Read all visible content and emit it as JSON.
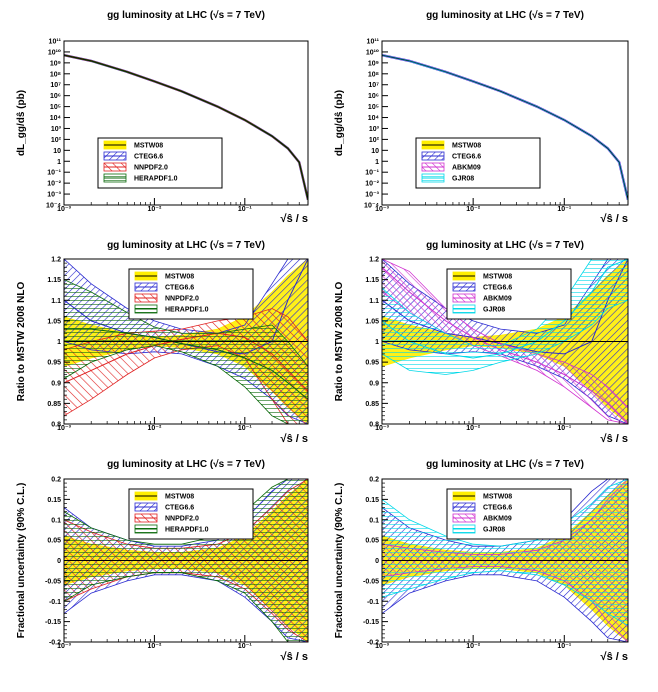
{
  "figure": {
    "colors": {
      "MSTW08": "#ffee00",
      "CTEG6.6": "#2a2ad0",
      "NNPDF2.0": "#e02020",
      "HERAPDF1.0": "#0b6a0b",
      "ABKM09": "#d030d0",
      "GJR08": "#00d8e8",
      "axis": "#000000"
    }
  },
  "chart_data": [
    {
      "id": "top-left",
      "type": "line",
      "title": "gg luminosity at LHC (√s = 7 TeV)",
      "ylabel": "dL_gg/dŝ (pb)",
      "xlabel": "√ŝ / s",
      "xscale": "log",
      "yscale": "log",
      "xlim": [
        0.001,
        0.5
      ],
      "ylim": [
        0.0001,
        100000000000
      ],
      "x_ticks": [
        "10⁻³",
        "10⁻²",
        "10⁻¹"
      ],
      "y_ticks": [
        "10⁻⁴",
        "10⁻³",
        "10⁻²",
        "10⁻¹",
        "1",
        "10",
        "10²",
        "10³",
        "10⁴",
        "10⁵",
        "10⁶",
        "10⁷",
        "10⁸",
        "10⁹",
        "10¹⁰",
        "10¹¹"
      ],
      "legend": [
        "MSTW08",
        "CTEG6.6",
        "NNPDF2.0",
        "HERAPDF1.0"
      ],
      "series": [
        {
          "name": "MSTW08",
          "x": [
            0.001,
            0.002,
            0.005,
            0.01,
            0.02,
            0.05,
            0.1,
            0.2,
            0.3,
            0.4,
            0.5
          ],
          "y": [
            5000000000,
            1500000000,
            150000000,
            20000000,
            2500000,
            100000,
            6000,
            200,
            15,
            0.8,
            0.0003
          ]
        }
      ]
    },
    {
      "id": "top-right",
      "type": "line",
      "title": "gg luminosity at LHC (√s = 7 TeV)",
      "ylabel": "dL_gg/dŝ (pb)",
      "xlabel": "√ŝ / s",
      "xscale": "log",
      "yscale": "log",
      "xlim": [
        0.001,
        0.5
      ],
      "ylim": [
        0.0001,
        100000000000
      ],
      "x_ticks": [
        "10⁻³",
        "10⁻²",
        "10⁻¹"
      ],
      "y_ticks": [
        "10⁻⁴",
        "10⁻³",
        "10⁻²",
        "10⁻¹",
        "1",
        "10",
        "10²",
        "10³",
        "10⁴",
        "10⁵",
        "10⁶",
        "10⁷",
        "10⁸",
        "10⁹",
        "10¹⁰",
        "10¹¹"
      ],
      "legend": [
        "MSTW08",
        "CTEG6.6",
        "ABKM09",
        "GJR08"
      ],
      "series": [
        {
          "name": "MSTW08",
          "x": [
            0.001,
            0.002,
            0.005,
            0.01,
            0.02,
            0.05,
            0.1,
            0.2,
            0.3,
            0.4,
            0.5
          ],
          "y": [
            5000000000,
            1500000000,
            150000000,
            20000000,
            2500000,
            100000,
            6000,
            200,
            15,
            0.8,
            0.0003
          ]
        }
      ]
    },
    {
      "id": "mid-left",
      "type": "area",
      "title": "gg luminosity at LHC (√s = 7 TeV)",
      "ylabel": "Ratio to MSTW 2008 NLO",
      "xlabel": "√ŝ / s",
      "xscale": "log",
      "xlim": [
        0.001,
        0.5
      ],
      "ylim": [
        0.8,
        1.2
      ],
      "x_ticks": [
        "10⁻³",
        "10⁻²",
        "10⁻¹"
      ],
      "y_ticks": [
        "0.8",
        "0.85",
        "0.9",
        "0.95",
        "1",
        "1.05",
        "1.1",
        "1.15",
        "1.2"
      ],
      "legend": [
        "MSTW08",
        "CTEG6.6",
        "NNPDF2.0",
        "HERAPDF1.0"
      ],
      "series": [
        {
          "name": "MSTW08",
          "x": [
            0.001,
            0.002,
            0.005,
            0.01,
            0.02,
            0.05,
            0.1,
            0.2,
            0.3,
            0.5
          ],
          "central": [
            1,
            1,
            1,
            1,
            1,
            1,
            1,
            1,
            1,
            1
          ],
          "lower": [
            0.94,
            0.96,
            0.98,
            0.99,
            0.985,
            0.97,
            0.94,
            0.88,
            0.84,
            0.8
          ],
          "upper": [
            1.06,
            1.04,
            1.02,
            1.01,
            1.015,
            1.03,
            1.06,
            1.12,
            1.16,
            1.2
          ]
        },
        {
          "name": "CTEG6.6",
          "x": [
            0.001,
            0.002,
            0.005,
            0.01,
            0.02,
            0.05,
            0.1,
            0.2,
            0.3,
            0.5
          ],
          "central": [
            1.1,
            1.05,
            1.02,
            1.01,
            0.995,
            0.975,
            0.97,
            1.0,
            1.1,
            1.2
          ],
          "lower": [
            1.0,
            0.98,
            0.97,
            0.975,
            0.97,
            0.94,
            0.91,
            0.86,
            0.82,
            0.8
          ],
          "upper": [
            1.2,
            1.14,
            1.08,
            1.05,
            1.03,
            1.02,
            1.04,
            1.14,
            1.2,
            1.2
          ]
        },
        {
          "name": "NNPDF2.0",
          "x": [
            0.001,
            0.002,
            0.005,
            0.01,
            0.02,
            0.05,
            0.1,
            0.2,
            0.3,
            0.5
          ],
          "central": [
            0.9,
            0.93,
            0.97,
            0.99,
            1.005,
            1.02,
            1.01,
            0.97,
            0.93,
            0.88
          ],
          "lower": [
            0.82,
            0.86,
            0.92,
            0.96,
            0.98,
            0.99,
            0.96,
            0.86,
            0.8,
            0.8
          ],
          "upper": [
            0.98,
            1.0,
            1.02,
            1.025,
            1.03,
            1.05,
            1.06,
            1.08,
            1.06,
            1.0
          ]
        },
        {
          "name": "HERAPDF1.0",
          "x": [
            0.001,
            0.002,
            0.005,
            0.01,
            0.02,
            0.05,
            0.1,
            0.2,
            0.3,
            0.5
          ],
          "central": [
            1.03,
            1.03,
            1.02,
            1.01,
            0.995,
            0.98,
            0.96,
            0.93,
            0.9,
            0.86
          ],
          "lower": [
            0.91,
            0.95,
            0.98,
            0.99,
            0.975,
            0.94,
            0.89,
            0.82,
            0.8,
            0.8
          ],
          "upper": [
            1.15,
            1.12,
            1.07,
            1.035,
            1.02,
            1.02,
            1.03,
            1.04,
            1.0,
            0.94
          ]
        }
      ]
    },
    {
      "id": "mid-right",
      "type": "area",
      "title": "gg luminosity at LHC (√s = 7 TeV)",
      "ylabel": "Ratio to MSTW 2008 NLO",
      "xlabel": "√ŝ / s",
      "xscale": "log",
      "xlim": [
        0.001,
        0.5
      ],
      "ylim": [
        0.8,
        1.2
      ],
      "x_ticks": [
        "10⁻³",
        "10⁻²",
        "10⁻¹"
      ],
      "y_ticks": [
        "0.8",
        "0.85",
        "0.9",
        "0.95",
        "1",
        "1.05",
        "1.1",
        "1.15",
        "1.2"
      ],
      "legend": [
        "MSTW08",
        "CTEG6.6",
        "ABKM09",
        "GJR08"
      ],
      "series": [
        {
          "name": "MSTW08",
          "x": [
            0.001,
            0.002,
            0.005,
            0.01,
            0.02,
            0.05,
            0.1,
            0.2,
            0.3,
            0.5
          ],
          "central": [
            1,
            1,
            1,
            1,
            1,
            1,
            1,
            1,
            1,
            1
          ],
          "lower": [
            0.94,
            0.96,
            0.98,
            0.99,
            0.985,
            0.97,
            0.94,
            0.88,
            0.84,
            0.8
          ],
          "upper": [
            1.06,
            1.04,
            1.02,
            1.01,
            1.015,
            1.03,
            1.06,
            1.12,
            1.16,
            1.2
          ]
        },
        {
          "name": "CTEG6.6",
          "x": [
            0.001,
            0.002,
            0.005,
            0.01,
            0.02,
            0.05,
            0.1,
            0.2,
            0.3,
            0.5
          ],
          "central": [
            1.1,
            1.05,
            1.02,
            1.01,
            0.995,
            0.975,
            0.97,
            1.0,
            1.1,
            1.2
          ],
          "lower": [
            1.0,
            0.98,
            0.97,
            0.975,
            0.97,
            0.94,
            0.91,
            0.86,
            0.82,
            0.8
          ],
          "upper": [
            1.2,
            1.14,
            1.08,
            1.05,
            1.03,
            1.02,
            1.04,
            1.14,
            1.2,
            1.2
          ]
        },
        {
          "name": "ABKM09",
          "x": [
            0.001,
            0.002,
            0.005,
            0.01,
            0.02,
            0.05,
            0.1,
            0.2,
            0.3,
            0.5
          ],
          "central": [
            1.18,
            1.12,
            1.05,
            1.01,
            0.98,
            0.95,
            0.92,
            0.88,
            0.85,
            0.8
          ],
          "lower": [
            1.12,
            1.07,
            1.02,
            0.99,
            0.965,
            0.93,
            0.89,
            0.84,
            0.81,
            0.8
          ],
          "upper": [
            1.2,
            1.17,
            1.08,
            1.03,
            0.995,
            0.97,
            0.95,
            0.92,
            0.89,
            0.84
          ]
        },
        {
          "name": "GJR08",
          "x": [
            0.001,
            0.002,
            0.005,
            0.01,
            0.02,
            0.05,
            0.1,
            0.2,
            0.3,
            0.5
          ],
          "central": [
            1.05,
            1.0,
            0.97,
            0.96,
            0.97,
            1.0,
            1.05,
            1.12,
            1.18,
            1.2
          ],
          "lower": [
            0.97,
            0.93,
            0.92,
            0.93,
            0.95,
            0.97,
            1.0,
            1.04,
            1.08,
            1.1
          ],
          "upper": [
            1.13,
            1.07,
            1.02,
            0.99,
            0.99,
            1.03,
            1.1,
            1.2,
            1.2,
            1.2
          ]
        }
      ]
    },
    {
      "id": "bottom-left",
      "type": "area",
      "title": "gg luminosity at LHC (√s = 7 TeV)",
      "ylabel": "Fractional uncertainty (90% C.L.)",
      "xlabel": "√ŝ / s",
      "xscale": "log",
      "xlim": [
        0.001,
        0.5
      ],
      "ylim": [
        -0.2,
        0.2
      ],
      "x_ticks": [
        "10⁻³",
        "10⁻²",
        "10⁻¹"
      ],
      "y_ticks": [
        "-0.2",
        "-0.15",
        "-0.1",
        "-0.05",
        "0",
        "0.05",
        "0.1",
        "0.15",
        "0.2"
      ],
      "legend": [
        "MSTW08",
        "CTEG6.6",
        "NNPDF2.0",
        "HERAPDF1.0"
      ],
      "series": [
        {
          "name": "MSTW08",
          "x": [
            0.001,
            0.002,
            0.005,
            0.01,
            0.02,
            0.05,
            0.1,
            0.2,
            0.3,
            0.5
          ],
          "lower": [
            -0.06,
            -0.04,
            -0.025,
            -0.02,
            -0.02,
            -0.03,
            -0.06,
            -0.12,
            -0.16,
            -0.2
          ],
          "upper": [
            0.06,
            0.04,
            0.025,
            0.02,
            0.02,
            0.03,
            0.06,
            0.12,
            0.16,
            0.2
          ]
        },
        {
          "name": "CTEG6.6",
          "x": [
            0.001,
            0.002,
            0.005,
            0.01,
            0.02,
            0.05,
            0.1,
            0.2,
            0.3,
            0.5
          ],
          "lower": [
            -0.13,
            -0.08,
            -0.05,
            -0.035,
            -0.035,
            -0.05,
            -0.09,
            -0.15,
            -0.19,
            -0.2
          ],
          "upper": [
            0.13,
            0.08,
            0.05,
            0.035,
            0.035,
            0.05,
            0.1,
            0.17,
            0.2,
            0.2
          ]
        },
        {
          "name": "NNPDF2.0",
          "x": [
            0.001,
            0.002,
            0.005,
            0.01,
            0.02,
            0.05,
            0.1,
            0.2,
            0.3,
            0.5
          ],
          "lower": [
            -0.1,
            -0.07,
            -0.04,
            -0.03,
            -0.03,
            -0.04,
            -0.07,
            -0.13,
            -0.17,
            -0.2
          ],
          "upper": [
            0.1,
            0.07,
            0.04,
            0.03,
            0.03,
            0.04,
            0.07,
            0.13,
            0.17,
            0.2
          ]
        },
        {
          "name": "HERAPDF1.0",
          "x": [
            0.001,
            0.002,
            0.005,
            0.01,
            0.02,
            0.05,
            0.1,
            0.2,
            0.3,
            0.5
          ],
          "lower": [
            -0.1,
            -0.06,
            -0.04,
            -0.03,
            -0.03,
            -0.05,
            -0.08,
            -0.15,
            -0.2,
            -0.2
          ],
          "upper": [
            0.12,
            0.08,
            0.05,
            0.04,
            0.04,
            0.06,
            0.12,
            0.18,
            0.2,
            0.2
          ]
        }
      ]
    },
    {
      "id": "bottom-right",
      "type": "area",
      "title": "gg luminosity at LHC (√s = 7 TeV)",
      "ylabel": "Fractional uncertainty (90% C.L.)",
      "xlabel": "√ŝ / s",
      "xscale": "log",
      "xlim": [
        0.001,
        0.5
      ],
      "ylim": [
        -0.2,
        0.2
      ],
      "x_ticks": [
        "10⁻³",
        "10⁻²",
        "10⁻¹"
      ],
      "y_ticks": [
        "-0.2",
        "-0.15",
        "-0.1",
        "-0.05",
        "0",
        "0.05",
        "0.1",
        "0.15",
        "0.2"
      ],
      "legend": [
        "MSTW08",
        "CTEG6.6",
        "ABKM09",
        "GJR08"
      ],
      "series": [
        {
          "name": "MSTW08",
          "x": [
            0.001,
            0.002,
            0.005,
            0.01,
            0.02,
            0.05,
            0.1,
            0.2,
            0.3,
            0.5
          ],
          "lower": [
            -0.06,
            -0.04,
            -0.025,
            -0.02,
            -0.02,
            -0.03,
            -0.06,
            -0.12,
            -0.16,
            -0.2
          ],
          "upper": [
            0.06,
            0.04,
            0.025,
            0.02,
            0.02,
            0.03,
            0.06,
            0.12,
            0.16,
            0.2
          ]
        },
        {
          "name": "CTEG6.6",
          "x": [
            0.001,
            0.002,
            0.005,
            0.01,
            0.02,
            0.05,
            0.1,
            0.2,
            0.3,
            0.5
          ],
          "lower": [
            -0.13,
            -0.08,
            -0.05,
            -0.035,
            -0.035,
            -0.05,
            -0.09,
            -0.15,
            -0.19,
            -0.2
          ],
          "upper": [
            0.13,
            0.08,
            0.05,
            0.035,
            0.035,
            0.05,
            0.1,
            0.17,
            0.2,
            0.2
          ]
        },
        {
          "name": "ABKM09",
          "x": [
            0.001,
            0.002,
            0.005,
            0.01,
            0.02,
            0.05,
            0.1,
            0.2,
            0.3,
            0.5
          ],
          "lower": [
            -0.04,
            -0.03,
            -0.02,
            -0.015,
            -0.015,
            -0.025,
            -0.05,
            -0.1,
            -0.15,
            -0.2
          ],
          "upper": [
            0.04,
            0.03,
            0.02,
            0.015,
            0.015,
            0.025,
            0.05,
            0.1,
            0.15,
            0.2
          ]
        },
        {
          "name": "GJR08",
          "x": [
            0.001,
            0.002,
            0.005,
            0.01,
            0.02,
            0.05,
            0.1,
            0.2,
            0.3,
            0.5
          ],
          "lower": [
            -0.09,
            -0.07,
            -0.045,
            -0.03,
            -0.025,
            -0.035,
            -0.06,
            -0.1,
            -0.13,
            -0.16
          ],
          "upper": [
            0.15,
            0.1,
            0.06,
            0.04,
            0.035,
            0.05,
            0.09,
            0.14,
            0.18,
            0.2
          ]
        }
      ]
    }
  ]
}
